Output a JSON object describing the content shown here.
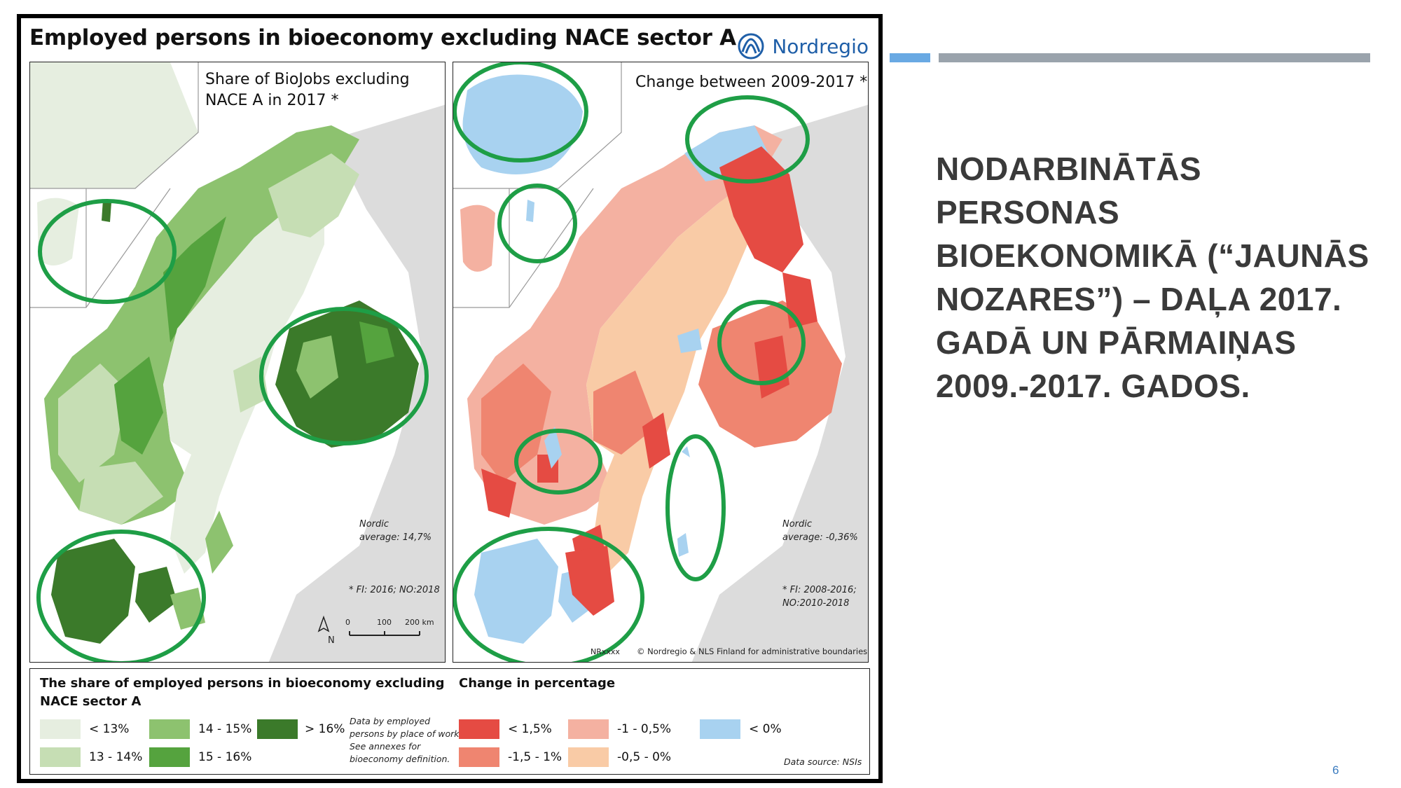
{
  "figure": {
    "title": "Employed persons in bioeconomy excluding NACE sector A",
    "logo_text": "Nordregio"
  },
  "left_map": {
    "title_line1": "Share of BioJobs excluding",
    "title_line2": "NACE A in 2017 *",
    "average_line1": "Nordic",
    "average_line2": "average: 14,7%",
    "footnote": "* FI: 2016; NO:2018",
    "north_label": "N",
    "scale": [
      "0",
      "100",
      "200 km"
    ]
  },
  "right_map": {
    "title": "Change between 2009-2017 *",
    "average_line1": "Nordic",
    "average_line2": "average: -0,36%",
    "footnote_line1": "* FI: 2008-2016;",
    "footnote_line2": "NO:2010-2018",
    "map_id": "NRxxxx",
    "copyright": "© Nordregio & NLS Finland for administrative boundaries"
  },
  "legend": {
    "share_title_line1": "The share of employed persons in bioeconomy excluding",
    "share_title_line2": "NACE sector A",
    "share_classes": [
      {
        "label": "< 13%",
        "color": "#e6eee0"
      },
      {
        "label": "13 - 14%",
        "color": "#c6deb4"
      },
      {
        "label": "14 - 15%",
        "color": "#8dc26f"
      },
      {
        "label": "15 - 16%",
        "color": "#55a33e"
      },
      {
        "label": "> 16%",
        "color": "#3b7a2a"
      }
    ],
    "share_note": [
      "Data by employed",
      "persons by place of work.",
      "See annexes for",
      "bioeconomy definition."
    ],
    "change_title": "Change in percentage",
    "change_classes": [
      {
        "label": "< 1,5%",
        "color": "#e54b43"
      },
      {
        "label": "-1,5 - 1%",
        "color": "#ef8570"
      },
      {
        "label": "-1 - 0,5%",
        "color": "#f4b1a1"
      },
      {
        "label": "-0,5 - 0%",
        "color": "#f9cba6"
      },
      {
        "label": "< 0%",
        "color": "#a8d2f0"
      }
    ],
    "data_source": "Data source: NSIs"
  },
  "colors": {
    "highlight_ring": "#1e9e46",
    "land_gray": "#d8d8d8",
    "sea": "#ffffff"
  },
  "slide": {
    "title_lines": [
      "NODARBINĀTĀS PERSONAS",
      "BIOEKONOMIKĀ (“JAUNĀS",
      "NOZARES”) – DAĻA 2017.",
      "GADĀ UN PĀRMAIŅAS",
      "2009.-2017. GADOS."
    ],
    "page_number": "6"
  }
}
